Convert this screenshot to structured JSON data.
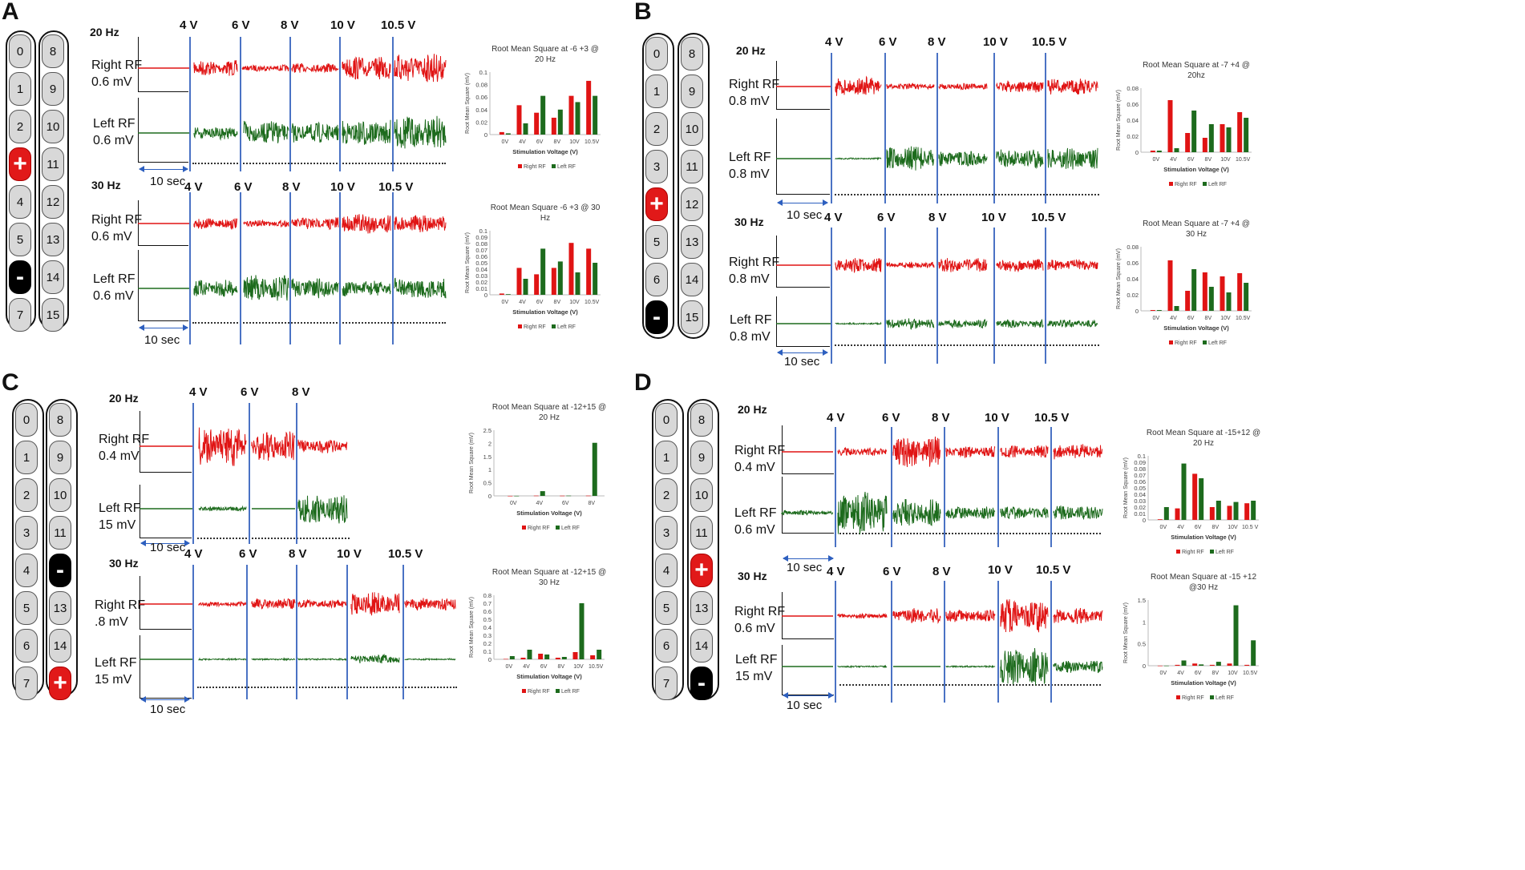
{
  "colors": {
    "right": "#e01414",
    "left": "#1d6b1d",
    "vline": "#4a72c4",
    "scale_arrow": "#2d5fbf"
  },
  "panels": {
    "A": {
      "letter": "A",
      "lead_col1": [
        "0",
        "1",
        "2",
        "+",
        "4",
        "5",
        "-",
        "7"
      ],
      "lead_col2": [
        "8",
        "9",
        "10",
        "11",
        "12",
        "13",
        "14",
        "15"
      ],
      "rows": [
        {
          "freq": "20 Hz",
          "volts": [
            "4 V",
            "6 V",
            "8 V",
            "10 V",
            "10.5 V"
          ],
          "right_label": "Right RF",
          "right_scale": "0.6 mV",
          "left_label": "Left RF",
          "left_scale": "0.6 mV",
          "time_scale": "10 sec"
        },
        {
          "freq": "30 Hz",
          "volts": [
            "4 V",
            "6 V",
            "8 V",
            "10 V",
            "10.5 V"
          ],
          "right_label": "Right RF",
          "right_scale": "0.6 mV",
          "left_label": "Left RF",
          "left_scale": "0.6 mV",
          "time_scale": "10 sec"
        }
      ]
    },
    "B": {
      "letter": "B",
      "lead_col1": [
        "0",
        "1",
        "2",
        "3",
        "+",
        "5",
        "6",
        "-"
      ],
      "lead_col2": [
        "8",
        "9",
        "10",
        "11",
        "12",
        "13",
        "14",
        "15"
      ],
      "rows": [
        {
          "freq": "20 Hz",
          "volts": [
            "4 V",
            "6 V",
            "8 V",
            "10 V",
            "10.5 V"
          ],
          "right_label": "Right RF",
          "right_scale": "0.8 mV",
          "left_label": "Left RF",
          "left_scale": "0.8 mV",
          "time_scale": "10 sec"
        },
        {
          "freq": "30 Hz",
          "volts": [
            "4 V",
            "6 V",
            "8 V",
            "10 V",
            "10.5 V"
          ],
          "right_label": "Right RF",
          "right_scale": "0.8 mV",
          "left_label": "Left RF",
          "left_scale": "0.8 mV",
          "time_scale": "10 sec"
        }
      ]
    },
    "C": {
      "letter": "C",
      "lead_col1": [
        "0",
        "1",
        "2",
        "3",
        "4",
        "5",
        "6",
        "7"
      ],
      "lead_col2": [
        "8",
        "9",
        "10",
        "11",
        "-",
        "13",
        "14",
        "+"
      ],
      "rows": [
        {
          "freq": "20 Hz",
          "volts": [
            "4 V",
            "6 V",
            "8 V"
          ],
          "right_label": "Right RF",
          "right_scale": "0.4 mV",
          "left_label": "Left RF",
          "left_scale": "15 mV",
          "time_scale": "10 sec"
        },
        {
          "freq": "30 Hz",
          "volts": [
            "4 V",
            "6 V",
            "8 V",
            "10 V",
            "10.5 V"
          ],
          "right_label": "Right RF",
          "right_scale": ".8 mV",
          "left_label": "Left RF",
          "left_scale": "15 mV",
          "time_scale": "10 sec"
        }
      ]
    },
    "D": {
      "letter": "D",
      "lead_col1": [
        "0",
        "1",
        "2",
        "3",
        "4",
        "5",
        "6",
        "7"
      ],
      "lead_col2": [
        "8",
        "9",
        "10",
        "11",
        "+",
        "13",
        "14",
        "-"
      ],
      "rows": [
        {
          "freq": "20 Hz",
          "volts": [
            "4 V",
            "6 V",
            "8 V",
            "10 V",
            "10.5 V"
          ],
          "right_label": "Right RF",
          "right_scale": "0.4 mV",
          "left_label": "Left RF",
          "left_scale": "0.6 mV",
          "time_scale": "10 sec"
        },
        {
          "freq": "30 Hz",
          "volts": [
            "4 V",
            "6 V",
            "8 V",
            "10 V",
            "10.5 V"
          ],
          "right_label": "Right RF",
          "right_scale": "0.6 mV",
          "left_label": "Left RF",
          "left_scale": "15 mV",
          "time_scale": "10 sec"
        }
      ]
    }
  },
  "chart_data": [
    {
      "id": "A20",
      "type": "bar",
      "title": "Root Mean Square at -6 +3 @ 20 Hz",
      "xlabel": "Stimulation Voltage (V)",
      "ylabel": "Root Mean Square (mV)",
      "categories": [
        "0V",
        "4V",
        "6V",
        "8V",
        "10V",
        "10.5V"
      ],
      "ylim": [
        0,
        0.1
      ],
      "yticks": [
        "0",
        "0.02",
        "0.04",
        "0.06",
        "0.08",
        "0.1"
      ],
      "series": [
        {
          "name": "Right RF",
          "values": [
            0.004,
            0.047,
            0.035,
            0.027,
            0.062,
            0.086
          ]
        },
        {
          "name": "Left RF",
          "values": [
            0.002,
            0.018,
            0.062,
            0.04,
            0.052,
            0.062
          ]
        }
      ]
    },
    {
      "id": "A30",
      "type": "bar",
      "title": "Root Mean Square -6 +3 @ 30 Hz",
      "xlabel": "Stimulation Voltage (V)",
      "ylabel": "Root Mean Square (mV)",
      "categories": [
        "0V",
        "4V",
        "6V",
        "8V",
        "10V",
        "10.5V"
      ],
      "ylim": [
        0,
        0.1
      ],
      "yticks": [
        "0",
        "0.01",
        "0.02",
        "0.03",
        "0.04",
        "0.05",
        "0.06",
        "0.07",
        "0.08",
        "0.09",
        "0.1"
      ],
      "series": [
        {
          "name": "Right RF",
          "values": [
            0.002,
            0.042,
            0.032,
            0.042,
            0.081,
            0.072
          ]
        },
        {
          "name": "Left RF",
          "values": [
            0.001,
            0.025,
            0.072,
            0.052,
            0.035,
            0.05
          ]
        }
      ]
    },
    {
      "id": "B20",
      "type": "bar",
      "title": "Root Mean Square at -7 +4 @ 20hz",
      "xlabel": "Stimulation Voltage (V)",
      "ylabel": "Root Mean Square (mV)",
      "categories": [
        "0V",
        "4V",
        "6V",
        "8V",
        "10V",
        "10.5V"
      ],
      "ylim": [
        0,
        0.08
      ],
      "yticks": [
        "0",
        "0.02",
        "0.04",
        "0.06",
        "0.08"
      ],
      "series": [
        {
          "name": "Right RF",
          "values": [
            0.002,
            0.065,
            0.024,
            0.018,
            0.035,
            0.05
          ]
        },
        {
          "name": "Left RF",
          "values": [
            0.002,
            0.005,
            0.052,
            0.035,
            0.031,
            0.043
          ]
        }
      ]
    },
    {
      "id": "B30",
      "type": "bar",
      "title": "Root Mean Square at -7 +4 @ 30 Hz",
      "xlabel": "Stimulation Voltage (V)",
      "ylabel": "Root Mean Square (mV)",
      "categories": [
        "0V",
        "4V",
        "6V",
        "8V",
        "10V",
        "10.5V"
      ],
      "ylim": [
        0,
        0.08
      ],
      "yticks": [
        "0",
        "0.02",
        "0.04",
        "0.06",
        "0.08"
      ],
      "series": [
        {
          "name": "Right RF",
          "values": [
            0.001,
            0.063,
            0.025,
            0.048,
            0.043,
            0.047
          ]
        },
        {
          "name": "Left RF",
          "values": [
            0.001,
            0.006,
            0.052,
            0.03,
            0.023,
            0.035
          ]
        }
      ]
    },
    {
      "id": "C20",
      "type": "bar",
      "title": "Root Mean Square at -12+15 @ 20 Hz",
      "xlabel": "Stimulation Voltage (V)",
      "ylabel": "Root Mean Square (mV)",
      "categories": [
        "0V",
        "4V",
        "6V",
        "8V"
      ],
      "ylim": [
        0,
        2.5
      ],
      "yticks": [
        "0",
        "0.5",
        "1",
        "1.5",
        "2",
        "2.5"
      ],
      "series": [
        {
          "name": "Right RF",
          "values": [
            0.002,
            0.01,
            0.008,
            0.01
          ]
        },
        {
          "name": "Left RF",
          "values": [
            0.003,
            0.18,
            0.01,
            2.02
          ]
        }
      ]
    },
    {
      "id": "C30",
      "type": "bar",
      "title": "Root Mean Square at -12+15 @ 30 Hz",
      "xlabel": "Stimulation Voltage (V)",
      "ylabel": "Root Mean Square (mV)",
      "categories": [
        "0V",
        "4V",
        "6V",
        "8V",
        "10V",
        "10.5V"
      ],
      "ylim": [
        0,
        0.8
      ],
      "yticks": [
        "0",
        "0.1",
        "0.2",
        "0.3",
        "0.4",
        "0.5",
        "0.6",
        "0.7",
        "0.8"
      ],
      "series": [
        {
          "name": "Right RF",
          "values": [
            0.005,
            0.02,
            0.07,
            0.02,
            0.09,
            0.05
          ]
        },
        {
          "name": "Left RF",
          "values": [
            0.04,
            0.12,
            0.06,
            0.03,
            0.7,
            0.12
          ]
        }
      ]
    },
    {
      "id": "D20",
      "type": "bar",
      "title": "Root Mean Square at -15+12 @ 20 Hz",
      "xlabel": "Stimulation Voltage (V)",
      "ylabel": "Root Mean Square (mV)",
      "categories": [
        "0V",
        "4V",
        "6V",
        "8V",
        "10V",
        "10.5 V"
      ],
      "ylim": [
        0,
        0.1
      ],
      "yticks": [
        "0",
        "0.01",
        "0.02",
        "0.03",
        "0.04",
        "0.05",
        "0.06",
        "0.07",
        "0.08",
        "0.09",
        "0.1"
      ],
      "series": [
        {
          "name": "Right RF",
          "values": [
            0.001,
            0.018,
            0.072,
            0.02,
            0.022,
            0.026
          ]
        },
        {
          "name": "Left RF",
          "values": [
            0.02,
            0.088,
            0.065,
            0.03,
            0.028,
            0.03
          ]
        }
      ]
    },
    {
      "id": "D30",
      "type": "bar",
      "title": "Root Mean Square at -15 +12 @30 Hz",
      "xlabel": "Stimulation Voltage (V)",
      "ylabel": "Root Mean Square (mV)",
      "categories": [
        "0V",
        "4V",
        "6V",
        "8V",
        "10V",
        "10.5V"
      ],
      "ylim": [
        0,
        1.5
      ],
      "yticks": [
        "0",
        "0.5",
        "1",
        "1.5"
      ],
      "series": [
        {
          "name": "Right RF",
          "values": [
            0.002,
            0.02,
            0.05,
            0.02,
            0.05,
            0.02
          ]
        },
        {
          "name": "Left RF",
          "values": [
            0.002,
            0.12,
            0.03,
            0.09,
            1.38,
            0.58
          ]
        }
      ]
    }
  ]
}
